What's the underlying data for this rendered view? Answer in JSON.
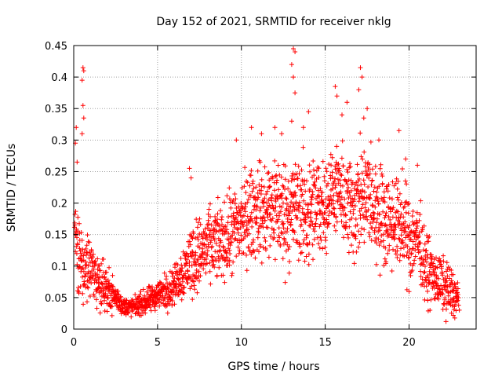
{
  "chart_data": {
    "type": "scatter",
    "title": "Day 152 of 2021, SRMTID for receiver nklg",
    "xlabel": "GPS time / hours",
    "ylabel": "SRMTID / TECUs",
    "xlim": [
      0,
      24
    ],
    "ylim": [
      0,
      0.45
    ],
    "grid": true,
    "marker": "+",
    "color": "#ff0000",
    "x_ticks": [
      0,
      5,
      10,
      15,
      20
    ],
    "x_tick_labels": [
      "0",
      "5",
      "10",
      "15",
      "20"
    ],
    "y_ticks": [
      0,
      0.05,
      0.1,
      0.15,
      0.2,
      0.25,
      0.3,
      0.35,
      0.4,
      0.45
    ],
    "y_tick_labels": [
      "0",
      "0.05",
      "0.1",
      "0.15",
      "0.2",
      "0.25",
      "0.3",
      "0.35",
      "0.4",
      "0.45"
    ],
    "series": [
      {
        "name": "SRMTID",
        "profile_hours": [
          0,
          0.3,
          0.5,
          1,
          1.5,
          2,
          2.5,
          3,
          3.5,
          4,
          4.5,
          5,
          5.5,
          6,
          6.5,
          7,
          7.5,
          8,
          8.5,
          9,
          9.5,
          10,
          10.5,
          11,
          11.5,
          12,
          12.5,
          13,
          13.5,
          14,
          14.5,
          15,
          15.5,
          16,
          16.5,
          17,
          17.5,
          18,
          18.5,
          19,
          19.5,
          20,
          20.5,
          21,
          21.5,
          22,
          22.5,
          23
        ],
        "profile_median": [
          0.15,
          0.12,
          0.1,
          0.09,
          0.08,
          0.065,
          0.05,
          0.035,
          0.035,
          0.04,
          0.045,
          0.055,
          0.06,
          0.07,
          0.09,
          0.11,
          0.12,
          0.13,
          0.135,
          0.14,
          0.15,
          0.17,
          0.18,
          0.19,
          0.18,
          0.2,
          0.18,
          0.19,
          0.19,
          0.18,
          0.19,
          0.2,
          0.22,
          0.21,
          0.19,
          0.2,
          0.21,
          0.19,
          0.18,
          0.17,
          0.17,
          0.14,
          0.15,
          0.1,
          0.08,
          0.07,
          0.06,
          0.045
        ],
        "profile_spread": [
          0.05,
          0.05,
          0.04,
          0.035,
          0.03,
          0.025,
          0.015,
          0.01,
          0.01,
          0.012,
          0.015,
          0.015,
          0.02,
          0.02,
          0.03,
          0.04,
          0.04,
          0.04,
          0.04,
          0.04,
          0.05,
          0.05,
          0.05,
          0.05,
          0.06,
          0.06,
          0.06,
          0.06,
          0.06,
          0.06,
          0.06,
          0.05,
          0.04,
          0.05,
          0.06,
          0.06,
          0.06,
          0.06,
          0.05,
          0.05,
          0.05,
          0.05,
          0.04,
          0.04,
          0.03,
          0.03,
          0.03,
          0.015
        ],
        "outliers": [
          {
            "x": 0.15,
            "y": 0.32
          },
          {
            "x": 0.1,
            "y": 0.295
          },
          {
            "x": 0.2,
            "y": 0.265
          },
          {
            "x": 0.55,
            "y": 0.415
          },
          {
            "x": 0.6,
            "y": 0.41
          },
          {
            "x": 0.5,
            "y": 0.395
          },
          {
            "x": 0.55,
            "y": 0.355
          },
          {
            "x": 0.6,
            "y": 0.335
          },
          {
            "x": 0.5,
            "y": 0.31
          },
          {
            "x": 6.9,
            "y": 0.255
          },
          {
            "x": 7.0,
            "y": 0.24
          },
          {
            "x": 9.7,
            "y": 0.3
          },
          {
            "x": 10.6,
            "y": 0.32
          },
          {
            "x": 11.2,
            "y": 0.31
          },
          {
            "x": 12.0,
            "y": 0.32
          },
          {
            "x": 12.4,
            "y": 0.31
          },
          {
            "x": 13.1,
            "y": 0.445
          },
          {
            "x": 13.2,
            "y": 0.44
          },
          {
            "x": 13.0,
            "y": 0.42
          },
          {
            "x": 13.1,
            "y": 0.4
          },
          {
            "x": 13.2,
            "y": 0.375
          },
          {
            "x": 13.0,
            "y": 0.33
          },
          {
            "x": 13.7,
            "y": 0.32
          },
          {
            "x": 14.0,
            "y": 0.345
          },
          {
            "x": 15.6,
            "y": 0.385
          },
          {
            "x": 15.7,
            "y": 0.37
          },
          {
            "x": 16.3,
            "y": 0.36
          },
          {
            "x": 16.0,
            "y": 0.34
          },
          {
            "x": 17.1,
            "y": 0.415
          },
          {
            "x": 17.2,
            "y": 0.4
          },
          {
            "x": 17.0,
            "y": 0.38
          },
          {
            "x": 17.5,
            "y": 0.35
          },
          {
            "x": 17.3,
            "y": 0.335
          },
          {
            "x": 18.2,
            "y": 0.3
          },
          {
            "x": 19.4,
            "y": 0.315
          },
          {
            "x": 19.8,
            "y": 0.27
          },
          {
            "x": 20.5,
            "y": 0.26
          },
          {
            "x": 21.1,
            "y": 0.06
          },
          {
            "x": 23.0,
            "y": 0.03
          }
        ]
      }
    ]
  }
}
